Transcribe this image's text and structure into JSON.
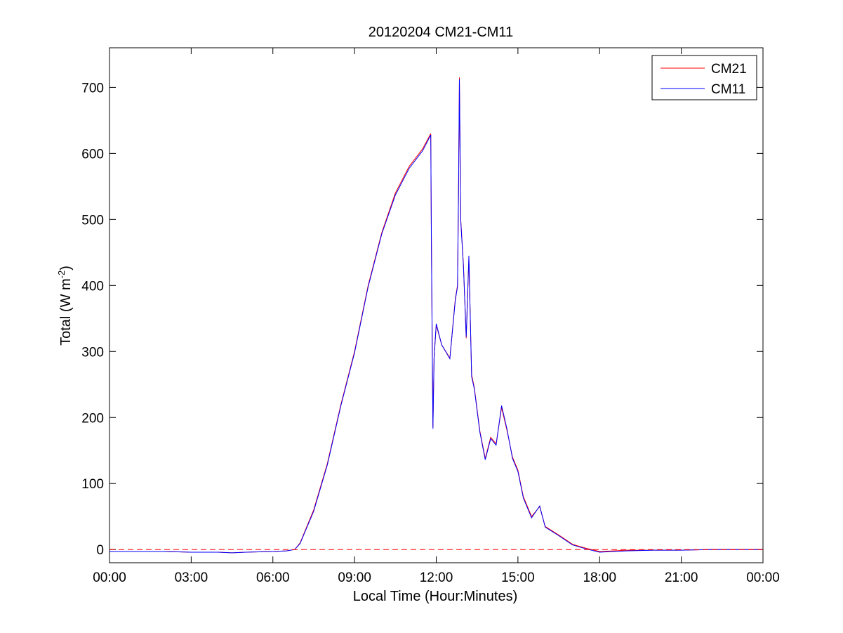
{
  "chart_data": {
    "type": "line",
    "title": "20120204 CM21-CM11",
    "xlabel": "Local Time (Hour:Minutes)",
    "ylabel": {
      "main": "Total (W m",
      "sup": "-2",
      "close": ")"
    },
    "xlim": [
      0,
      24
    ],
    "ylim": [
      -20,
      760
    ],
    "x_ticks": [
      0,
      3,
      6,
      9,
      12,
      15,
      18,
      21,
      24
    ],
    "x_tick_labels": [
      "00:00",
      "03:00",
      "06:00",
      "09:00",
      "12:00",
      "15:00",
      "18:00",
      "21:00",
      "00:00"
    ],
    "y_ticks": [
      0,
      100,
      200,
      300,
      400,
      500,
      600,
      700
    ],
    "y_tick_labels": [
      "0",
      "100",
      "200",
      "300",
      "400",
      "500",
      "600",
      "700"
    ],
    "legend_position": "top-right",
    "reference_line": {
      "y": 0,
      "style": "dashed",
      "color": "#ff0000"
    },
    "series": [
      {
        "name": "CM21",
        "color": "#ff0000",
        "x": [
          0,
          1,
          2,
          3,
          4,
          4.5,
          5,
          6,
          6.5,
          6.8,
          7,
          7.5,
          8,
          8.5,
          9,
          9.5,
          10,
          10.5,
          11,
          11.5,
          11.8,
          11.82,
          11.85,
          11.88,
          11.92,
          12,
          12.2,
          12.5,
          12.7,
          12.78,
          12.82,
          12.85,
          12.9,
          13,
          13.1,
          13.2,
          13.3,
          13.4,
          13.6,
          13.8,
          14,
          14.2,
          14.4,
          14.6,
          14.8,
          15,
          15.2,
          15.5,
          15.8,
          16,
          16.5,
          17,
          17.5,
          18,
          18.5,
          19,
          20,
          21,
          22,
          23,
          24
        ],
        "y": [
          -3,
          -3,
          -3,
          -4,
          -4,
          -5,
          -4,
          -3,
          -2,
          0,
          10,
          60,
          130,
          220,
          300,
          400,
          480,
          540,
          580,
          607,
          630,
          480,
          320,
          185,
          290,
          340,
          310,
          290,
          380,
          400,
          550,
          715,
          500,
          430,
          320,
          440,
          265,
          245,
          180,
          138,
          170,
          160,
          215,
          180,
          140,
          120,
          80,
          50,
          65,
          35,
          22,
          8,
          2,
          -3,
          -2,
          -1,
          -1,
          -1,
          0,
          0,
          0
        ]
      },
      {
        "name": "CM11",
        "color": "#0000ff",
        "x": [
          0,
          1,
          2,
          3,
          4,
          4.5,
          5,
          6,
          6.5,
          6.8,
          7,
          7.5,
          8,
          8.5,
          9,
          9.5,
          10,
          10.5,
          11,
          11.5,
          11.8,
          11.82,
          11.85,
          11.88,
          11.92,
          12,
          12.2,
          12.5,
          12.7,
          12.78,
          12.82,
          12.85,
          12.9,
          13,
          13.1,
          13.2,
          13.3,
          13.4,
          13.6,
          13.8,
          14,
          14.2,
          14.4,
          14.6,
          14.8,
          15,
          15.2,
          15.5,
          15.8,
          16,
          16.5,
          17,
          17.5,
          18,
          18.5,
          19,
          20,
          21,
          22,
          23,
          24
        ],
        "y": [
          -3,
          -3,
          -3,
          -4,
          -4,
          -5,
          -4,
          -3,
          -2,
          0,
          9,
          58,
          128,
          218,
          298,
          398,
          478,
          537,
          577,
          604,
          628,
          480,
          322,
          183,
          290,
          342,
          310,
          289,
          378,
          398,
          545,
          712,
          498,
          428,
          322,
          445,
          262,
          243,
          178,
          136,
          168,
          158,
          218,
          182,
          138,
          118,
          78,
          48,
          66,
          34,
          21,
          7,
          1,
          -4,
          -3,
          -2,
          -1,
          -1,
          0,
          0,
          0
        ]
      }
    ]
  }
}
